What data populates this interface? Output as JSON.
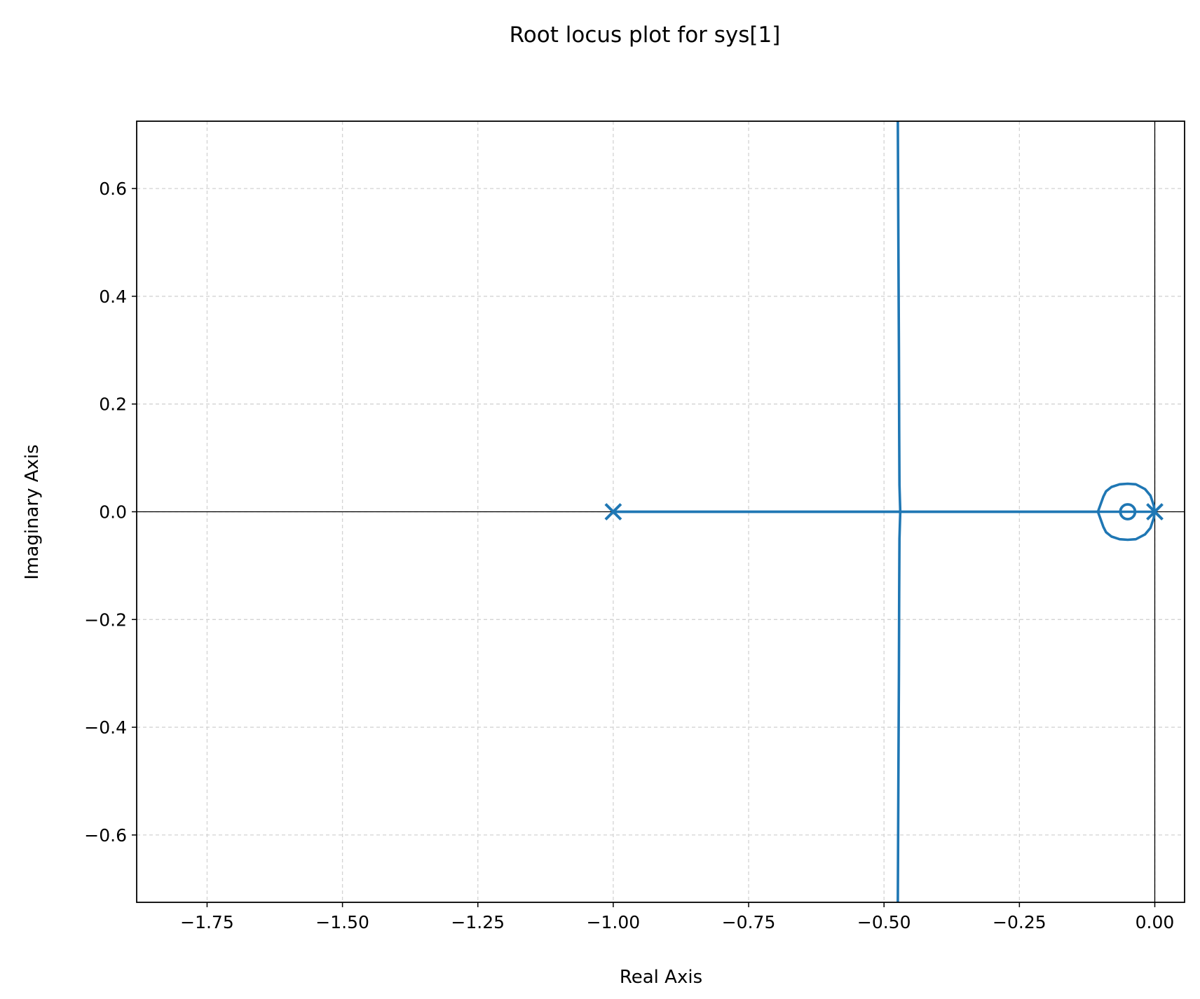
{
  "chart_data": {
    "type": "line",
    "title": "Root locus plot for sys[1]",
    "xlabel": "Real Axis",
    "ylabel": "Imaginary Axis",
    "xlim": [
      -1.88,
      0.055
    ],
    "ylim": [
      -0.725,
      0.725
    ],
    "x_ticks": [
      -1.75,
      -1.5,
      -1.25,
      -1.0,
      -0.75,
      -0.5,
      -0.25,
      0.0
    ],
    "x_tick_labels": [
      "−1.75",
      "−1.50",
      "−1.25",
      "−1.00",
      "−0.75",
      "−0.50",
      "−0.25",
      "0.00"
    ],
    "y_ticks": [
      0.6,
      0.4,
      0.2,
      0.0,
      -0.2,
      -0.4,
      -0.6
    ],
    "y_tick_labels": [
      "0.6",
      "0.4",
      "0.2",
      "0.0",
      "−0.2",
      "−0.4",
      "−0.6"
    ],
    "grid": true,
    "grid_style": "dashed",
    "series_color": "#1f77b4",
    "poles": [
      {
        "x": -1.0,
        "y": 0.0
      },
      {
        "x": 0.0,
        "y": 0.0
      }
    ],
    "zeros": [
      {
        "x": -0.05,
        "y": 0.0
      }
    ],
    "series": [
      {
        "values": [
          {
            "x": -1.0,
            "y": 0.0
          },
          {
            "x": -0.8,
            "y": 0.0
          },
          {
            "x": -0.6,
            "y": 0.0
          },
          {
            "x": -0.47,
            "y": 0.0
          },
          {
            "x": -0.3,
            "y": 0.0
          },
          {
            "x": -0.2,
            "y": 0.0
          },
          {
            "x": -0.105,
            "y": 0.0
          }
        ]
      },
      {
        "values": [
          {
            "x": 0.0,
            "y": 0.0
          },
          {
            "x": -0.105,
            "y": 0.0
          },
          {
            "x": -0.3,
            "y": 0.0
          },
          {
            "x": -0.47,
            "y": 0.0
          },
          {
            "x": -0.6,
            "y": 0.0
          },
          {
            "x": -0.8,
            "y": 0.0
          },
          {
            "x": -1.0,
            "y": 0.0
          }
        ]
      },
      {
        "values": [
          {
            "x": -0.47,
            "y": 0.0
          },
          {
            "x": -0.4715,
            "y": 0.05
          },
          {
            "x": -0.472,
            "y": 0.15
          },
          {
            "x": -0.4725,
            "y": 0.3
          },
          {
            "x": -0.4735,
            "y": 0.5
          },
          {
            "x": -0.4745,
            "y": 0.725
          }
        ]
      },
      {
        "values": [
          {
            "x": -0.47,
            "y": 0.0
          },
          {
            "x": -0.4715,
            "y": -0.05
          },
          {
            "x": -0.472,
            "y": -0.15
          },
          {
            "x": -0.4725,
            "y": -0.3
          },
          {
            "x": -0.4735,
            "y": -0.5
          },
          {
            "x": -0.4745,
            "y": -0.725
          }
        ]
      },
      {
        "values": [
          {
            "x": -0.105,
            "y": 0.0
          },
          {
            "x": -0.095,
            "y": 0.028
          },
          {
            "x": -0.09,
            "y": 0.038
          },
          {
            "x": -0.08,
            "y": 0.046
          },
          {
            "x": -0.065,
            "y": 0.051
          },
          {
            "x": -0.05,
            "y": 0.052
          },
          {
            "x": -0.035,
            "y": 0.051
          },
          {
            "x": -0.018,
            "y": 0.042
          },
          {
            "x": -0.008,
            "y": 0.03
          },
          {
            "x": -0.002,
            "y": 0.012
          },
          {
            "x": 0.0,
            "y": 0.0
          }
        ]
      },
      {
        "values": [
          {
            "x": -0.105,
            "y": 0.0
          },
          {
            "x": -0.095,
            "y": -0.028
          },
          {
            "x": -0.09,
            "y": -0.038
          },
          {
            "x": -0.08,
            "y": -0.046
          },
          {
            "x": -0.065,
            "y": -0.051
          },
          {
            "x": -0.05,
            "y": -0.052
          },
          {
            "x": -0.035,
            "y": -0.051
          },
          {
            "x": -0.018,
            "y": -0.042
          },
          {
            "x": -0.008,
            "y": -0.03
          },
          {
            "x": -0.002,
            "y": -0.012
          },
          {
            "x": 0.0,
            "y": 0.0
          }
        ]
      }
    ]
  }
}
